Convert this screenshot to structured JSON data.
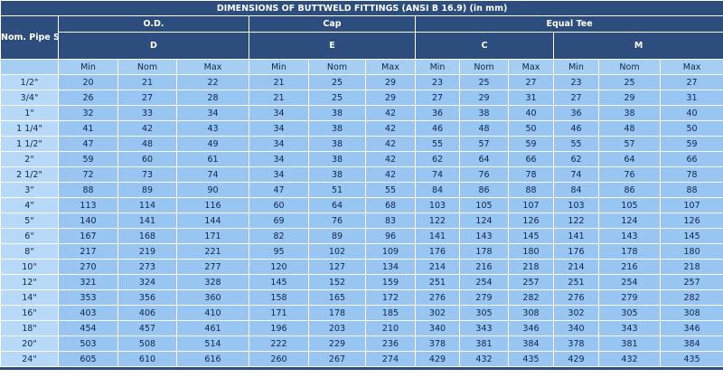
{
  "title": "DIMENSIONS OF BUTTWELD FITTINGS (ANSI B 16.9) (in mm)",
  "size_header": "Nom. Pipe Size",
  "groups": {
    "od": "O.D.",
    "cap": "Cap",
    "tee": "Equal Tee"
  },
  "sub_headers": {
    "d": "D",
    "e": "E",
    "c": "C",
    "m": "M"
  },
  "mmm": [
    "Min",
    "Nom",
    "Max"
  ],
  "rows": [
    {
      "size": "1/2\"",
      "d": [
        "20",
        "21",
        "22"
      ],
      "e": [
        "21",
        "25",
        "29"
      ],
      "c": [
        "23",
        "25",
        "27"
      ],
      "m": [
        "23",
        "25",
        "27"
      ]
    },
    {
      "size": "3/4\"",
      "d": [
        "26",
        "27",
        "28"
      ],
      "e": [
        "21",
        "25",
        "29"
      ],
      "c": [
        "27",
        "29",
        "31"
      ],
      "m": [
        "27",
        "29",
        "31"
      ]
    },
    {
      "size": "1\"",
      "d": [
        "32",
        "33",
        "34"
      ],
      "e": [
        "34",
        "38",
        "42"
      ],
      "c": [
        "36",
        "38",
        "40"
      ],
      "m": [
        "36",
        "38",
        "40"
      ]
    },
    {
      "size": "1 1/4\"",
      "d": [
        "41",
        "42",
        "43"
      ],
      "e": [
        "34",
        "38",
        "42"
      ],
      "c": [
        "46",
        "48",
        "50"
      ],
      "m": [
        "46",
        "48",
        "50"
      ]
    },
    {
      "size": "1 1/2\"",
      "d": [
        "47",
        "48",
        "49"
      ],
      "e": [
        "34",
        "38",
        "42"
      ],
      "c": [
        "55",
        "57",
        "59"
      ],
      "m": [
        "55",
        "57",
        "59"
      ]
    },
    {
      "size": "2\"",
      "d": [
        "59",
        "60",
        "61"
      ],
      "e": [
        "34",
        "38",
        "42"
      ],
      "c": [
        "62",
        "64",
        "66"
      ],
      "m": [
        "62",
        "64",
        "66"
      ]
    },
    {
      "size": "2 1/2\"",
      "d": [
        "72",
        "73",
        "74"
      ],
      "e": [
        "34",
        "38",
        "42"
      ],
      "c": [
        "74",
        "76",
        "78"
      ],
      "m": [
        "74",
        "76",
        "78"
      ]
    },
    {
      "size": "3\"",
      "d": [
        "88",
        "89",
        "90"
      ],
      "e": [
        "47",
        "51",
        "55"
      ],
      "c": [
        "84",
        "86",
        "88"
      ],
      "m": [
        "84",
        "86",
        "88"
      ]
    },
    {
      "size": "4\"",
      "d": [
        "113",
        "114",
        "116"
      ],
      "e": [
        "60",
        "64",
        "68"
      ],
      "c": [
        "103",
        "105",
        "107"
      ],
      "m": [
        "103",
        "105",
        "107"
      ]
    },
    {
      "size": "5\"",
      "d": [
        "140",
        "141",
        "144"
      ],
      "e": [
        "69",
        "76",
        "83"
      ],
      "c": [
        "122",
        "124",
        "126"
      ],
      "m": [
        "122",
        "124",
        "126"
      ]
    },
    {
      "size": "6\"",
      "d": [
        "167",
        "168",
        "171"
      ],
      "e": [
        "82",
        "89",
        "96"
      ],
      "c": [
        "141",
        "143",
        "145"
      ],
      "m": [
        "141",
        "143",
        "145"
      ]
    },
    {
      "size": "8\"",
      "d": [
        "217",
        "219",
        "221"
      ],
      "e": [
        "95",
        "102",
        "109"
      ],
      "c": [
        "176",
        "178",
        "180"
      ],
      "m": [
        "176",
        "178",
        "180"
      ]
    },
    {
      "size": "10\"",
      "d": [
        "270",
        "273",
        "277"
      ],
      "e": [
        "120",
        "127",
        "134"
      ],
      "c": [
        "214",
        "216",
        "218"
      ],
      "m": [
        "214",
        "216",
        "218"
      ]
    },
    {
      "size": "12\"",
      "d": [
        "321",
        "324",
        "328"
      ],
      "e": [
        "145",
        "152",
        "159"
      ],
      "c": [
        "251",
        "254",
        "257"
      ],
      "m": [
        "251",
        "254",
        "257"
      ]
    },
    {
      "size": "14\"",
      "d": [
        "353",
        "356",
        "360"
      ],
      "e": [
        "158",
        "165",
        "172"
      ],
      "c": [
        "276",
        "279",
        "282"
      ],
      "m": [
        "276",
        "279",
        "282"
      ]
    },
    {
      "size": "16\"",
      "d": [
        "403",
        "406",
        "410"
      ],
      "e": [
        "171",
        "178",
        "185"
      ],
      "c": [
        "302",
        "305",
        "308"
      ],
      "m": [
        "302",
        "305",
        "308"
      ]
    },
    {
      "size": "18\"",
      "d": [
        "454",
        "457",
        "461"
      ],
      "e": [
        "196",
        "203",
        "210"
      ],
      "c": [
        "340",
        "343",
        "346"
      ],
      "m": [
        "340",
        "343",
        "346"
      ]
    },
    {
      "size": "20\"",
      "d": [
        "503",
        "508",
        "514"
      ],
      "e": [
        "222",
        "229",
        "236"
      ],
      "c": [
        "378",
        "381",
        "384"
      ],
      "m": [
        "378",
        "381",
        "384"
      ]
    },
    {
      "size": "24\"",
      "d": [
        "605",
        "610",
        "616"
      ],
      "e": [
        "260",
        "267",
        "274"
      ],
      "c": [
        "429",
        "432",
        "435"
      ],
      "m": [
        "429",
        "432",
        "435"
      ]
    }
  ],
  "colors": {
    "header_bg": "#2c4d7d",
    "header_text": "#ffffff",
    "cell_bg": "#98c5f2",
    "size_cell_bg": "#b7d8f7",
    "cell_text": "#10254a"
  }
}
